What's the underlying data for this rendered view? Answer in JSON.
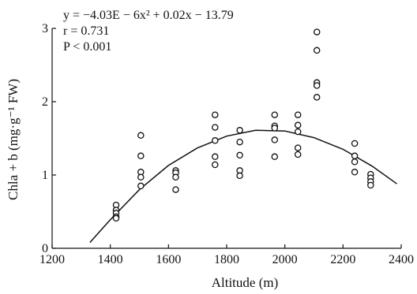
{
  "chart_data": {
    "type": "scatter",
    "xlabel": "Altitude (m)",
    "ylabel": "Chla + b (mg·g⁻¹ FW)",
    "xlim": [
      1200,
      2400
    ],
    "ylim": [
      0,
      3
    ],
    "xticks": [
      1200,
      1400,
      1600,
      1800,
      2000,
      2200,
      2400
    ],
    "yticks": [
      0,
      1,
      2,
      3
    ],
    "grid": false,
    "series": [
      {
        "points": [
          [
            1420,
            0.59
          ],
          [
            1420,
            0.52
          ],
          [
            1420,
            0.48
          ],
          [
            1420,
            0.43
          ],
          [
            1420,
            0.41
          ],
          [
            1505,
            1.54
          ],
          [
            1505,
            1.26
          ],
          [
            1505,
            1.04
          ],
          [
            1505,
            0.97
          ],
          [
            1505,
            0.85
          ],
          [
            1625,
            1.06
          ],
          [
            1625,
            1.03
          ],
          [
            1625,
            0.97
          ],
          [
            1625,
            0.8
          ],
          [
            1760,
            1.82
          ],
          [
            1760,
            1.65
          ],
          [
            1760,
            1.47
          ],
          [
            1760,
            1.25
          ],
          [
            1760,
            1.14
          ],
          [
            1845,
            1.61
          ],
          [
            1845,
            1.45
          ],
          [
            1845,
            1.27
          ],
          [
            1845,
            1.06
          ],
          [
            1845,
            0.99
          ],
          [
            1965,
            1.82
          ],
          [
            1965,
            1.67
          ],
          [
            1965,
            1.64
          ],
          [
            1965,
            1.48
          ],
          [
            1965,
            1.25
          ],
          [
            2045,
            1.82
          ],
          [
            2045,
            1.68
          ],
          [
            2045,
            1.59
          ],
          [
            2045,
            1.37
          ],
          [
            2045,
            1.28
          ],
          [
            2110,
            2.95
          ],
          [
            2110,
            2.7
          ],
          [
            2110,
            2.26
          ],
          [
            2110,
            2.22
          ],
          [
            2110,
            2.06
          ],
          [
            2240,
            1.43
          ],
          [
            2240,
            1.26
          ],
          [
            2240,
            1.18
          ],
          [
            2240,
            1.04
          ],
          [
            2295,
            1.01
          ],
          [
            2295,
            0.96
          ],
          [
            2295,
            0.91
          ],
          [
            2295,
            0.86
          ]
        ]
      }
    ],
    "fit_curve": {
      "x_range": [
        1330,
        2385
      ],
      "points": [
        [
          1330,
          0.08
        ],
        [
          1400,
          0.39
        ],
        [
          1500,
          0.8
        ],
        [
          1600,
          1.13
        ],
        [
          1700,
          1.37
        ],
        [
          1800,
          1.53
        ],
        [
          1900,
          1.61
        ],
        [
          2000,
          1.6
        ],
        [
          2100,
          1.51
        ],
        [
          2200,
          1.35
        ],
        [
          2300,
          1.12
        ],
        [
          2385,
          0.88
        ]
      ]
    },
    "annotations": [
      "y = −4.03E − 6x² + 0.02x − 13.79",
      "r = 0.731",
      "P < 0.001"
    ]
  }
}
